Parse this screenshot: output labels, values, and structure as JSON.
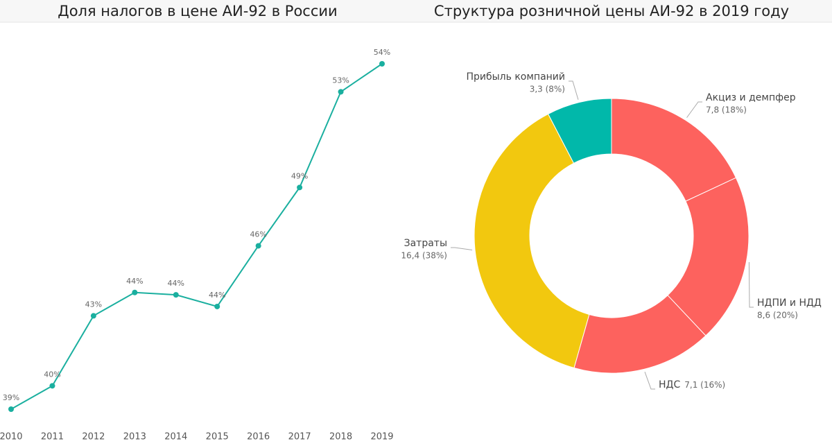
{
  "chart_data": [
    {
      "type": "line",
      "title": "Доля налогов в цене АИ-92 в России",
      "categories": [
        "2010",
        "2011",
        "2012",
        "2013",
        "2014",
        "2015",
        "2016",
        "2017",
        "2018",
        "2019"
      ],
      "values": [
        39.4,
        40.4,
        43.4,
        44.4,
        44.3,
        43.8,
        46.4,
        48.9,
        53.0,
        54.2
      ],
      "value_labels": [
        "39%",
        "40%",
        "43%",
        "44%",
        "44%",
        "44%",
        "46%",
        "49%",
        "53%",
        "54%"
      ],
      "color": "#1aaf9f"
    },
    {
      "type": "donut",
      "title": "Структура розничной цены АИ-92 в 2019 году",
      "categories": [
        "Акциз и демпфер",
        "НДПИ и НДД",
        "НДС",
        "Затраты",
        "Прибыль компаний"
      ],
      "values": [
        7.8,
        8.6,
        7.1,
        16.4,
        3.3
      ],
      "value_labels": [
        "7,8 (18%)",
        "8,6 (20%)",
        "7,1 (16%)",
        "16,4 (38%)",
        "3,3 (8%)"
      ],
      "colors": [
        "#fd625e",
        "#fd625e",
        "#fd625e",
        "#f2c80f",
        "#01b8aa"
      ]
    }
  ]
}
